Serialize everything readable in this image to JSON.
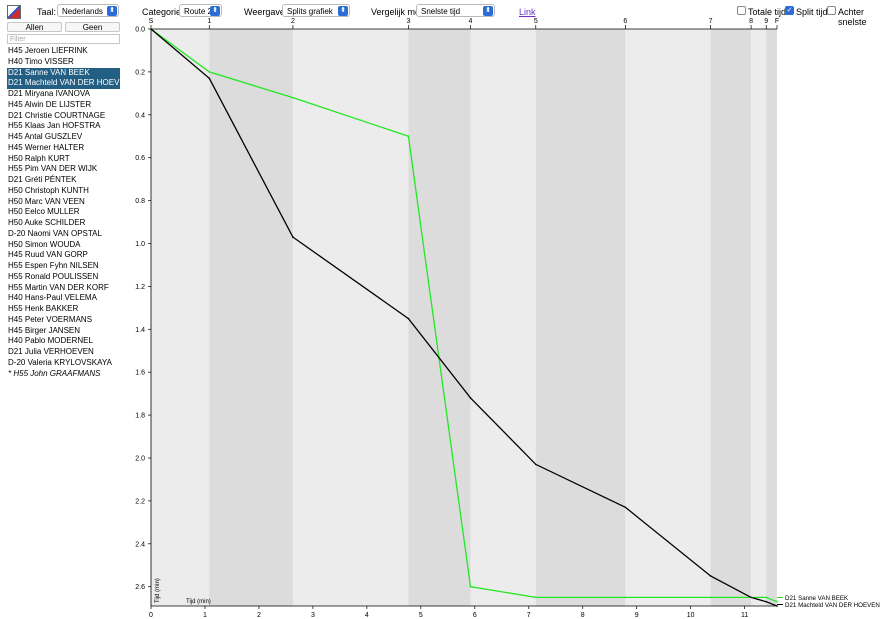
{
  "header": {
    "language_label": "Taal:",
    "language_value": "Nederlands",
    "category_label": "Categorie:",
    "category_value": "Route 2",
    "view_label": "Weergave:",
    "view_value": "Splits grafiek",
    "compare_label": "Vergelijk met",
    "compare_value": "Snelste tijd",
    "link_label": "Link",
    "options": [
      {
        "label": "Totale tijd",
        "checked": false
      },
      {
        "label": "Split tijd",
        "checked": true
      },
      {
        "label": "Achter snelste",
        "checked": false
      }
    ]
  },
  "sidebar": {
    "all_button": "Allen",
    "none_button": "Geen",
    "filter_placeholder": "Filter",
    "runners": [
      {
        "name": "H45 Jeroen LIEFRINK",
        "selected": false
      },
      {
        "name": "H40 Timo VISSER",
        "selected": false
      },
      {
        "name": "D21 Sanne VAN BEEK",
        "selected": true
      },
      {
        "name": "D21 Machteld VAN DER HOEVEN",
        "selected": true
      },
      {
        "name": "D21 Miryana IVANOVA",
        "selected": false
      },
      {
        "name": "H45 Alwin DE LIJSTER",
        "selected": false
      },
      {
        "name": "D21 Christie COURTNAGE",
        "selected": false
      },
      {
        "name": "H55 Klaas Jan HOFSTRA",
        "selected": false
      },
      {
        "name": "H45 Antal GUSZLEV",
        "selected": false
      },
      {
        "name": "H45 Werner HALTER",
        "selected": false
      },
      {
        "name": "H50 Ralph KURT",
        "selected": false
      },
      {
        "name": "H55 Pim VAN DER WIJK",
        "selected": false
      },
      {
        "name": "D21 Gréti PÉNTEK",
        "selected": false
      },
      {
        "name": "H50 Christoph KUNTH",
        "selected": false
      },
      {
        "name": "H50 Marc VAN VEEN",
        "selected": false
      },
      {
        "name": "H50 Eelco MULLER",
        "selected": false
      },
      {
        "name": "H50 Auke SCHILDER",
        "selected": false
      },
      {
        "name": "D-20 Naomi VAN OPSTAL",
        "selected": false
      },
      {
        "name": "H50 Simon WOUDA",
        "selected": false
      },
      {
        "name": "H45 Ruud VAN GORP",
        "selected": false
      },
      {
        "name": "H55 Espen Fyhn NILSEN",
        "selected": false
      },
      {
        "name": "H55 Ronald POULISSEN",
        "selected": false
      },
      {
        "name": "H55 Martin VAN DER KORF",
        "selected": false
      },
      {
        "name": "H40 Hans-Paul VELEMA",
        "selected": false
      },
      {
        "name": "H55 Henk BAKKER",
        "selected": false
      },
      {
        "name": "H45 Peter VOERMANS",
        "selected": false
      },
      {
        "name": "H45 Birger JANSEN",
        "selected": false
      },
      {
        "name": "H40 Pablo MODERNEL",
        "selected": false
      },
      {
        "name": "D21 Julia VERHOEVEN",
        "selected": false
      },
      {
        "name": "D-20 Valeria KRYLOVSKAYA",
        "selected": false
      },
      {
        "name": "* H55 John GRAAFMANS",
        "selected": false,
        "italic": true
      }
    ]
  },
  "chart_data": {
    "type": "line",
    "xlabel": "Tijd (min)",
    "ylabel": "Tijd (min)",
    "xlim": [
      0,
      11.6
    ],
    "ylim": [
      0,
      2.69
    ],
    "x_ticks": [
      0,
      1,
      2,
      3,
      4,
      5,
      6,
      7,
      8,
      9,
      10,
      11
    ],
    "y_ticks": [
      0.0,
      0.2,
      0.4,
      0.6,
      0.8,
      1.0,
      1.2,
      1.4,
      1.6,
      1.8,
      2.0,
      2.2,
      2.4,
      2.6
    ],
    "y_tick_labels": [
      "0.0",
      "0.2",
      "0.4",
      "0.6",
      "0.8",
      "1.0",
      "1.2",
      "1.4",
      "1.6",
      "1.8",
      "2.0",
      "2.2",
      "2.4",
      "2.6"
    ],
    "controls": [
      {
        "label": "S",
        "x": 0
      },
      {
        "label": "1",
        "x": 1.08
      },
      {
        "label": "2",
        "x": 2.63
      },
      {
        "label": "3",
        "x": 4.77
      },
      {
        "label": "4",
        "x": 5.92
      },
      {
        "label": "5",
        "x": 7.13
      },
      {
        "label": "6",
        "x": 8.79
      },
      {
        "label": "7",
        "x": 10.37
      },
      {
        "label": "8",
        "x": 11.12
      },
      {
        "label": "9",
        "x": 11.4
      },
      {
        "label": "F",
        "x": 11.6
      }
    ],
    "series": [
      {
        "name": "D21 Sanne VAN BEEK",
        "color": "#22e822",
        "points": [
          [
            0,
            0
          ],
          [
            1.08,
            0.2
          ],
          [
            2.63,
            0.32
          ],
          [
            4.77,
            0.5
          ],
          [
            5.92,
            2.6
          ],
          [
            7.13,
            2.65
          ],
          [
            8.79,
            2.65
          ],
          [
            10.37,
            2.65
          ],
          [
            11.12,
            2.65
          ],
          [
            11.4,
            2.65
          ],
          [
            11.6,
            2.67
          ]
        ]
      },
      {
        "name": "D21 Machteld VAN DER HOEVEN",
        "color": "#000000",
        "points": [
          [
            0,
            0
          ],
          [
            1.08,
            0.23
          ],
          [
            2.63,
            0.97
          ],
          [
            4.77,
            1.35
          ],
          [
            5.92,
            1.72
          ],
          [
            7.13,
            2.03
          ],
          [
            8.79,
            2.23
          ],
          [
            10.37,
            2.55
          ],
          [
            11.12,
            2.65
          ],
          [
            11.4,
            2.67
          ],
          [
            11.6,
            2.69
          ]
        ]
      }
    ]
  }
}
